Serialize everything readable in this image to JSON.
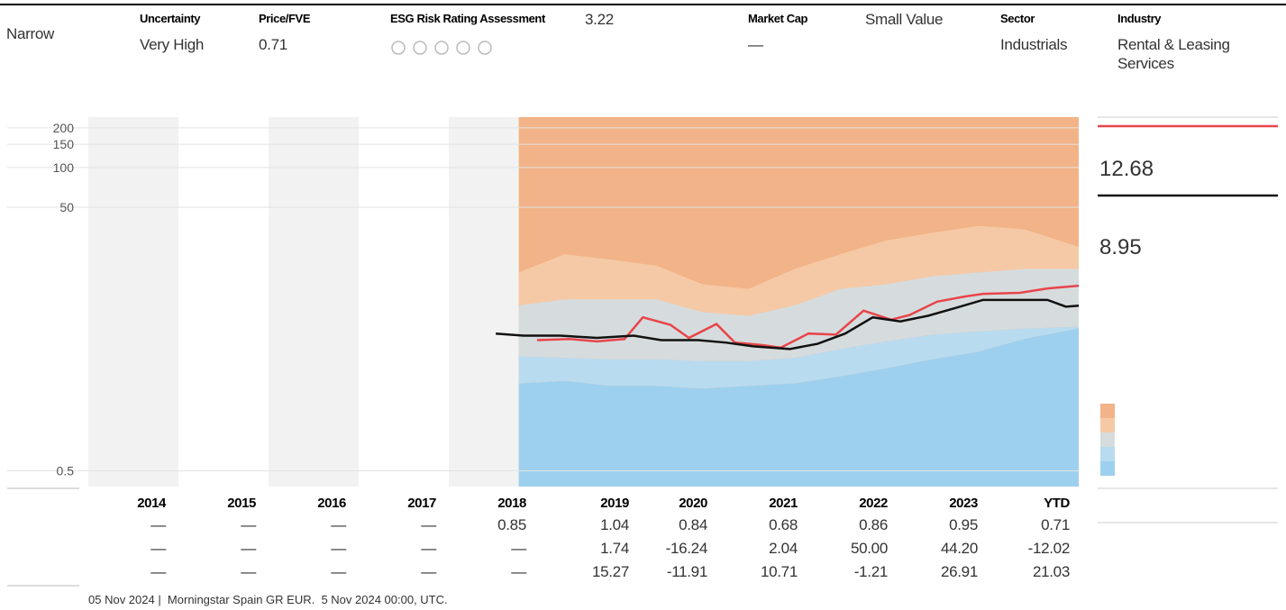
{
  "header": {
    "items": [
      {
        "value": "Narrow"
      },
      {
        "label": "Uncertainty",
        "value": "Very High"
      },
      {
        "label": "Price/FVE",
        "value": "0.71"
      },
      {
        "label": "ESG Risk Rating Assessment",
        "extra": "3.22"
      },
      {
        "label": "Market Cap",
        "value": "—",
        "extra": "Small Value"
      },
      {
        "label": "Sector",
        "value": "Industrials"
      },
      {
        "label": "Industry",
        "value": "Rental & Leasing Services"
      }
    ]
  },
  "chart_data": {
    "type": "line",
    "ylog": true,
    "xlim": [
      2014,
      2024.84
    ],
    "ylim": [
      0.38,
      241
    ],
    "yticks": [
      0.5,
      50,
      100,
      150,
      200
    ],
    "grid": true,
    "band_top_color": "#f1b387",
    "bands": {
      "x": [
        2018.75,
        2019.25,
        2019.75,
        2020.25,
        2020.75,
        2021.25,
        2021.75,
        2022.25,
        2022.75,
        2023.25,
        2023.75,
        2024.25,
        2024.84
      ],
      "series": [
        {
          "color": "#f6c9a6",
          "values": [
            16,
            22,
            20,
            18,
            13,
            12,
            17,
            22,
            28,
            32,
            36,
            34,
            25
          ]
        },
        {
          "color": "#d6dcdd",
          "values": [
            9,
            10,
            10,
            10,
            8,
            7.5,
            9,
            12,
            13,
            15,
            16,
            17,
            17
          ]
        },
        {
          "color": "#b9dbf0",
          "values": [
            3.7,
            3.6,
            3.5,
            3.5,
            3.4,
            3.4,
            3.6,
            4.2,
            4.8,
            5.4,
            5.7,
            6,
            6.2
          ]
        },
        {
          "color": "#9dd0ee",
          "values": [
            2.3,
            2.4,
            2.2,
            2.2,
            2.1,
            2.2,
            2.3,
            2.6,
            3,
            3.5,
            4,
            5,
            6
          ]
        }
      ]
    },
    "series": [
      {
        "color": "#e8454a",
        "x": [
          2018.95,
          2019.3,
          2019.6,
          2019.9,
          2020.1,
          2020.4,
          2020.6,
          2020.9,
          2021.1,
          2021.4,
          2021.6,
          2021.9,
          2022.2,
          2022.5,
          2022.8,
          2023.0,
          2023.3,
          2023.6,
          2023.8,
          2024.2,
          2024.5,
          2024.84
        ],
        "values": [
          4.9,
          5.0,
          4.8,
          5.0,
          7.3,
          6.4,
          5.1,
          6.5,
          4.7,
          4.5,
          4.3,
          5.5,
          5.4,
          8.2,
          7.0,
          7.6,
          9.6,
          10.5,
          11.0,
          11.2,
          12.1,
          12.68
        ]
      },
      {
        "color": "#111111",
        "x": [
          2018.5,
          2018.8,
          2019.2,
          2019.6,
          2020.0,
          2020.3,
          2020.7,
          2021.0,
          2021.3,
          2021.7,
          2022.0,
          2022.3,
          2022.6,
          2022.9,
          2023.2,
          2023.5,
          2023.8,
          2024.1,
          2024.5,
          2024.7,
          2024.84
        ],
        "values": [
          5.5,
          5.3,
          5.3,
          5.1,
          5.3,
          4.9,
          4.9,
          4.7,
          4.4,
          4.2,
          4.6,
          5.5,
          7.3,
          6.8,
          7.5,
          8.6,
          9.9,
          9.9,
          9.9,
          8.8,
          8.95
        ]
      }
    ],
    "last_labels": [
      12.68,
      8.95
    ]
  },
  "table": {
    "columns": [
      "2014",
      "2015",
      "2016",
      "2017",
      "2018",
      "2019",
      "2020",
      "2021",
      "2022",
      "2023",
      "YTD"
    ],
    "rows": [
      [
        "—",
        "—",
        "—",
        "—",
        "0.85",
        "1.04",
        "0.84",
        "0.68",
        "0.86",
        "0.95",
        "0.71"
      ],
      [
        "—",
        "—",
        "—",
        "—",
        "—",
        "1.74",
        "-16.24",
        "2.04",
        "50.00",
        "44.20",
        "-12.02"
      ],
      [
        "—",
        "—",
        "—",
        "—",
        "—",
        "15.27",
        "-11.91",
        "10.71",
        "-1.21",
        "26.91",
        "21.03"
      ]
    ]
  },
  "footer": "05 Nov 2024 |  Morningstar Spain GR EUR.  5 Nov 2024 00:00, UTC."
}
